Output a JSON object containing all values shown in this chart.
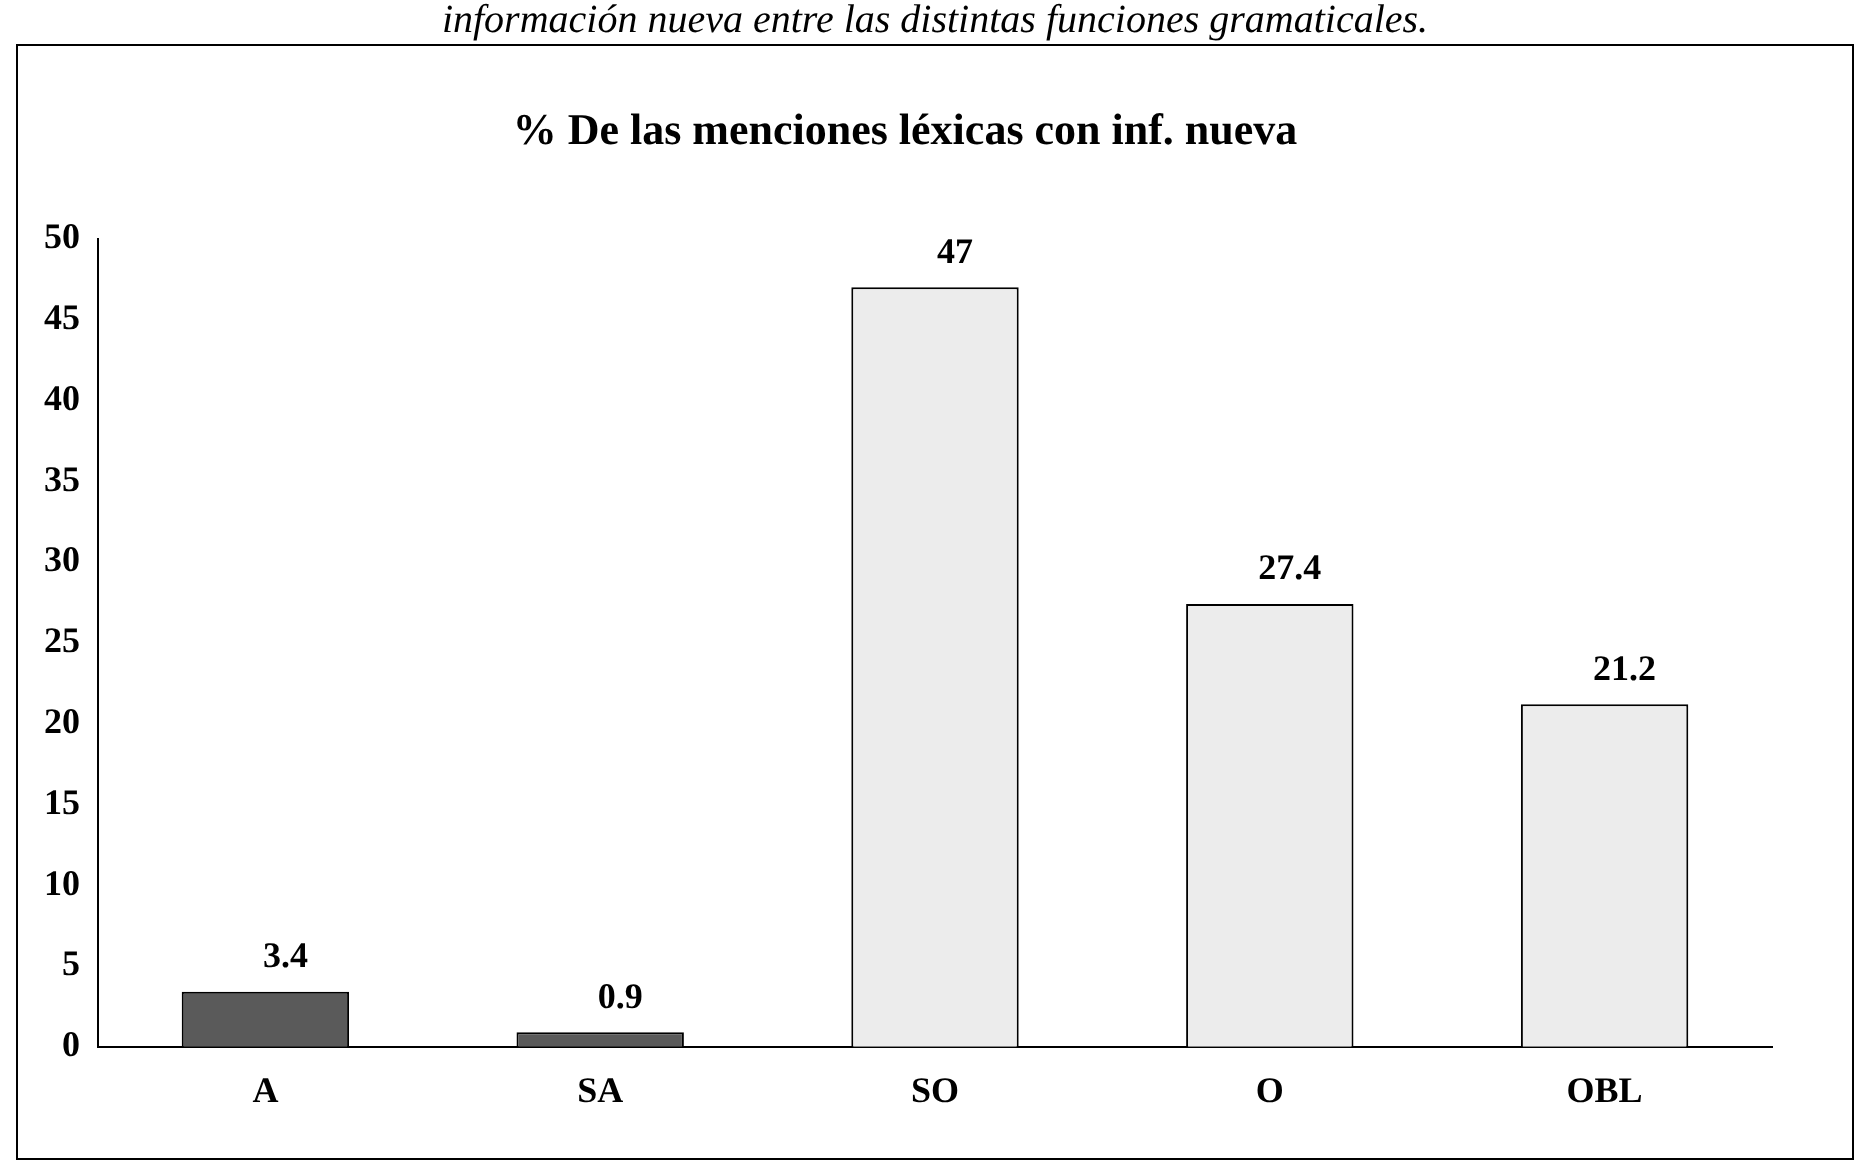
{
  "chart_data": {
    "type": "bar",
    "title": "% De las menciones léxicas con inf. nueva",
    "annotations": [
      "información nueva entre las distintas funciones gramaticales."
    ],
    "categories": [
      "A",
      "SA",
      "SO",
      "O",
      "OBL"
    ],
    "values": [
      3.4,
      0.9,
      47,
      27.4,
      21.2
    ],
    "colors": [
      "#5a5a5a",
      "#5a5a5a",
      "#ececec",
      "#ececec",
      "#ececec"
    ],
    "ylim": [
      0,
      50
    ],
    "yticks": [
      0,
      5,
      10,
      15,
      20,
      25,
      30,
      35,
      40,
      45,
      50
    ],
    "grid": false,
    "legend": false,
    "data_labels": true
  }
}
